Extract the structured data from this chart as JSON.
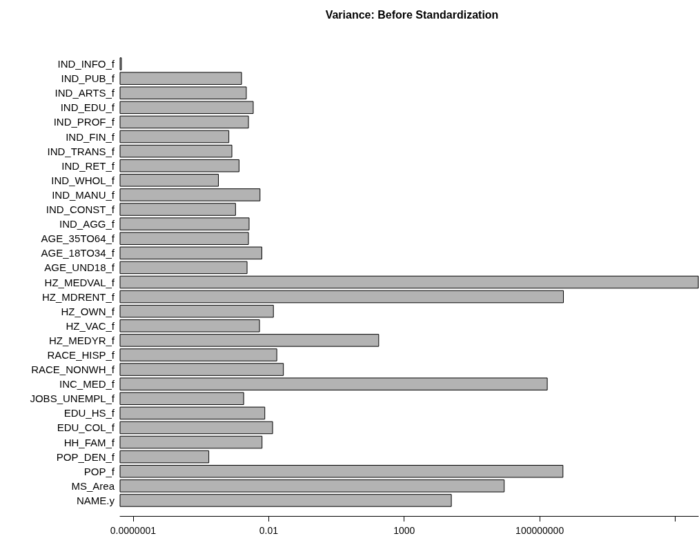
{
  "chart_data": {
    "type": "bar",
    "orientation": "horizontal",
    "log": "x",
    "title": "Variance: Before Standardization",
    "categories": [
      "IND_INFO_f",
      "IND_PUB_f",
      "IND_ARTS_f",
      "IND_EDU_f",
      "IND_PROF_f",
      "IND_FIN_f",
      "IND_TRANS_f",
      "IND_RET_f",
      "IND_WHOL_f",
      "IND_MANU_f",
      "IND_CONST_f",
      "IND_AGG_f",
      "AGE_35TO64_f",
      "AGE_18TO34_f",
      "AGE_UND18_f",
      "HZ_MEDVAL_f",
      "HZ_MDRENT_f",
      "HZ_OWN_f",
      "HZ_VAC_f",
      "HZ_MEDYR_f",
      "RACE_HISP_f",
      "RACE_NONWH_f",
      "INC_MED_f",
      "JOBS_UNEMPL_f",
      "EDU_HS_f",
      "EDU_COL_f",
      "HH_FAM_f",
      "POP_DEN_f",
      "POP_f",
      "MS_Area",
      "NAME.y"
    ],
    "values": [
      3.7e-08,
      0.001,
      0.0015,
      0.0027,
      0.0018,
      0.00034,
      0.00044,
      0.00081,
      0.00014,
      0.0048,
      0.0006,
      0.0019,
      0.0018,
      0.0056,
      0.0016,
      71000000000000.0,
      750000000.0,
      0.015,
      0.0046,
      115,
      0.02,
      0.035,
      190000000.0,
      0.0012,
      0.0072,
      0.014,
      0.0057,
      6.2e-05,
      720000000.0,
      4900000.0,
      55000
    ],
    "color": "#b3b3b3",
    "xlim": [
      3.3e-08,
      71000000000000.0
    ],
    "xticks": [
      {
        "value": 1e-07,
        "label": "0.0000001"
      },
      0.01,
      1000,
      100000000,
      {
        "value": 10000000000000.0,
        "label": null
      }
    ],
    "grid": false
  }
}
